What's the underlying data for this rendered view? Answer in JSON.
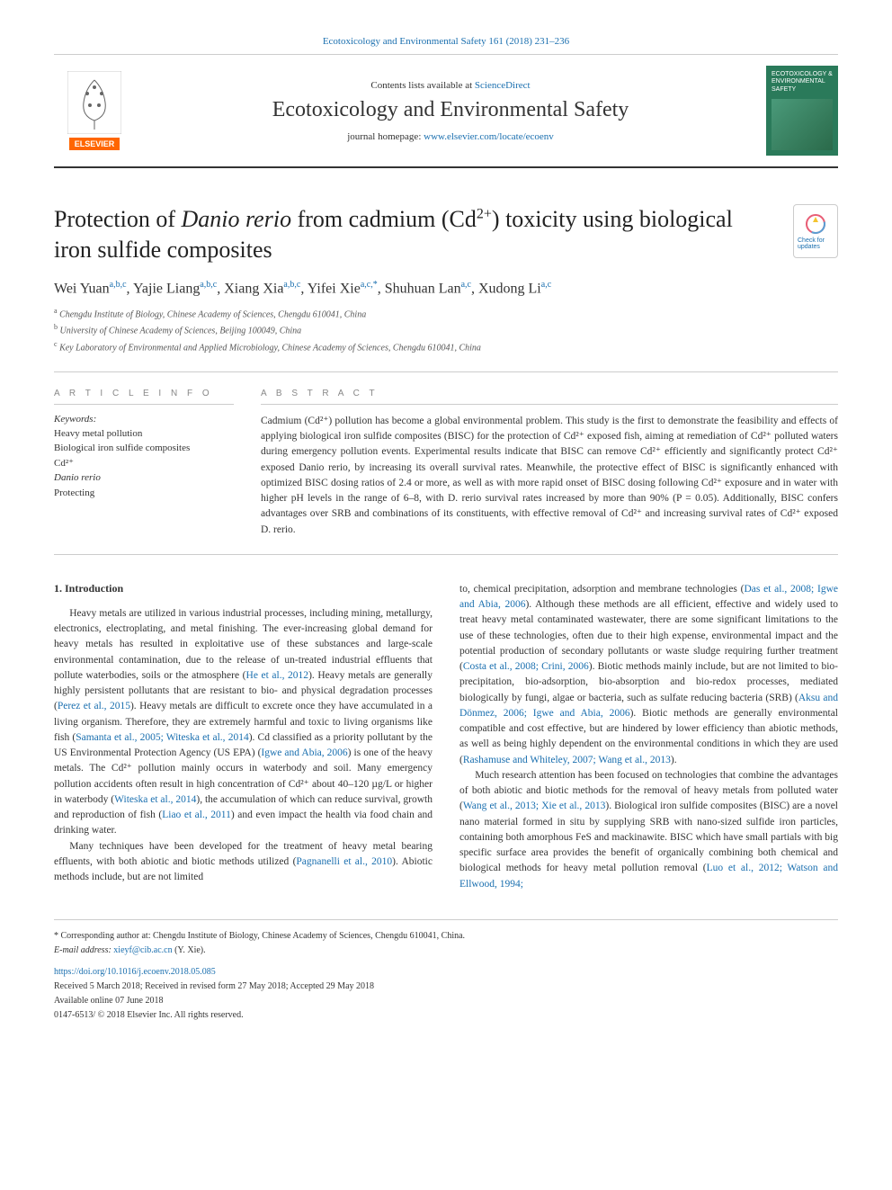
{
  "header_link": "Ecotoxicology and Environmental Safety 161 (2018) 231–236",
  "masthead": {
    "contents_prefix": "Contents lists available at ",
    "contents_link": "ScienceDirect",
    "journal_title": "Ecotoxicology and Environmental Safety",
    "homepage_prefix": "journal homepage: ",
    "homepage_link": "www.elsevier.com/locate/ecoenv",
    "elsevier_label": "ELSEVIER",
    "cover_text": "ECOTOXICOLOGY & ENVIRONMENTAL SAFETY"
  },
  "check_updates": "Check for updates",
  "article": {
    "title_prefix": "Protection of ",
    "title_italic": "Danio rerio",
    "title_mid": " from cadmium (Cd",
    "title_sup": "2+",
    "title_suffix": ") toxicity using biological iron sulfide composites",
    "authors_html": "Wei Yuan<sup>a,b,c</sup>, Yajie Liang<sup>a,b,c</sup>, Xiang Xia<sup>a,b,c</sup>, Yifei Xie<sup>a,c,*</sup>, Shuhuan Lan<sup>a,c</sup>, Xudong Li<sup>a,c</sup>",
    "affiliations": [
      {
        "sup": "a",
        "text": "Chengdu Institute of Biology, Chinese Academy of Sciences, Chengdu 610041, China"
      },
      {
        "sup": "b",
        "text": "University of Chinese Academy of Sciences, Beijing 100049, China"
      },
      {
        "sup": "c",
        "text": "Key Laboratory of Environmental and Applied Microbiology, Chinese Academy of Sciences, Chengdu 610041, China"
      }
    ]
  },
  "info": {
    "label": "A R T I C L E  I N F O",
    "keywords_label": "Keywords:",
    "keywords": [
      "Heavy metal pollution",
      "Biological iron sulfide composites",
      "Cd²⁺",
      "Danio rerio",
      "Protecting"
    ]
  },
  "abstract": {
    "label": "A B S T R A C T",
    "text": "Cadmium (Cd²⁺) pollution has become a global environmental problem. This study is the first to demonstrate the feasibility and effects of applying biological iron sulfide composites (BISC) for the protection of Cd²⁺ exposed fish, aiming at remediation of Cd²⁺ polluted waters during emergency pollution events. Experimental results indicate that BISC can remove Cd²⁺ efficiently and significantly protect Cd²⁺ exposed Danio rerio, by increasing its overall survival rates. Meanwhile, the protective effect of BISC is significantly enhanced with optimized BISC dosing ratios of 2.4 or more, as well as with more rapid onset of BISC dosing following Cd²⁺ exposure and in water with higher pH levels in the range of 6–8, with D. rerio survival rates increased by more than 90% (P = 0.05). Additionally, BISC confers advantages over SRB and combinations of its constituents, with effective removal of Cd²⁺ and increasing survival rates of Cd²⁺ exposed D. rerio."
  },
  "body": {
    "h1": "1. Introduction",
    "col1_p1": "Heavy metals are utilized in various industrial processes, including mining, metallurgy, electronics, electroplating, and metal finishing. The ever-increasing global demand for heavy metals has resulted in exploitative use of these substances and large-scale environmental contamination, due to the release of un-treated industrial effluents that pollute waterbodies, soils or the atmosphere (<a>He et al., 2012</a>). Heavy metals are generally highly persistent pollutants that are resistant to bio- and physical degradation processes (<a>Perez et al., 2015</a>). Heavy metals are difficult to excrete once they have accumulated in a living organism. Therefore, they are extremely harmful and toxic to living organisms like fish (<a>Samanta et al., 2005; Witeska et al., 2014</a>). Cd classified as a priority pollutant by the US Environmental Protection Agency (US EPA) (<a>Igwe and Abia, 2006</a>) is one of the heavy metals. The Cd²⁺ pollution mainly occurs in waterbody and soil. Many emergency pollution accidents often result in high concentration of Cd²⁺ about 40–120 µg/L or higher in waterbody (<a>Witeska et al., 2014</a>), the accumulation of which can reduce survival, growth and reproduction of fish (<a>Liao et al., 2011</a>) and even impact the health via food chain and drinking water.",
    "col1_p2": "Many techniques have been developed for the treatment of heavy metal bearing effluents, with both abiotic and biotic methods utilized (<a>Pagnanelli et al., 2010</a>). Abiotic methods include, but are not limited",
    "col2_p1": "to, chemical precipitation, adsorption and membrane technologies (<a>Das et al., 2008; Igwe and Abia, 2006</a>). Although these methods are all efficient, effective and widely used to treat heavy metal contaminated wastewater, there are some significant limitations to the use of these technologies, often due to their high expense, environmental impact and the potential production of secondary pollutants or waste sludge requiring further treatment (<a>Costa et al., 2008; Crini, 2006</a>). Biotic methods mainly include, but are not limited to bio-precipitation, bio-adsorption, bio-absorption and bio-redox processes, mediated biologically by fungi, algae or bacteria, such as sulfate reducing bacteria (SRB) (<a>Aksu and Dönmez, 2006; Igwe and Abia, 2006</a>). Biotic methods are generally environmental compatible and cost effective, but are hindered by lower efficiency than abiotic methods, as well as being highly dependent on the environmental conditions in which they are used (<a>Rashamuse and Whiteley, 2007; Wang et al., 2013</a>).",
    "col2_p2": "Much research attention has been focused on technologies that combine the advantages of both abiotic and biotic methods for the removal of heavy metals from polluted water (<a>Wang et al., 2013; Xie et al., 2013</a>). Biological iron sulfide composites (BISC) are a novel nano material formed in situ by supplying SRB with nano-sized sulfide iron particles, containing both amorphous FeS and mackinawite. BISC which have small partials with big specific surface area provides the benefit of organically combining both chemical and biological methods for heavy metal pollution removal (<a>Luo et al., 2012; Watson and Ellwood, 1994;</a>"
  },
  "footer": {
    "corresponding_label": "* Corresponding author at: Chengdu Institute of Biology, Chinese Academy of Sciences, Chengdu 610041, China.",
    "email_label": "E-mail address: ",
    "email": "xieyf@cib.ac.cn",
    "email_suffix": " (Y. Xie).",
    "doi": "https://doi.org/10.1016/j.ecoenv.2018.05.085",
    "received": "Received 5 March 2018; Received in revised form 27 May 2018; Accepted 29 May 2018",
    "available": "Available online 07 June 2018",
    "copyright": "0147-6513/ © 2018 Elsevier Inc. All rights reserved."
  },
  "colors": {
    "link": "#1a6faf",
    "text": "#333333",
    "border": "#cccccc",
    "elsevier_orange": "#ff6600",
    "cover_green": "#2a7a5a"
  }
}
